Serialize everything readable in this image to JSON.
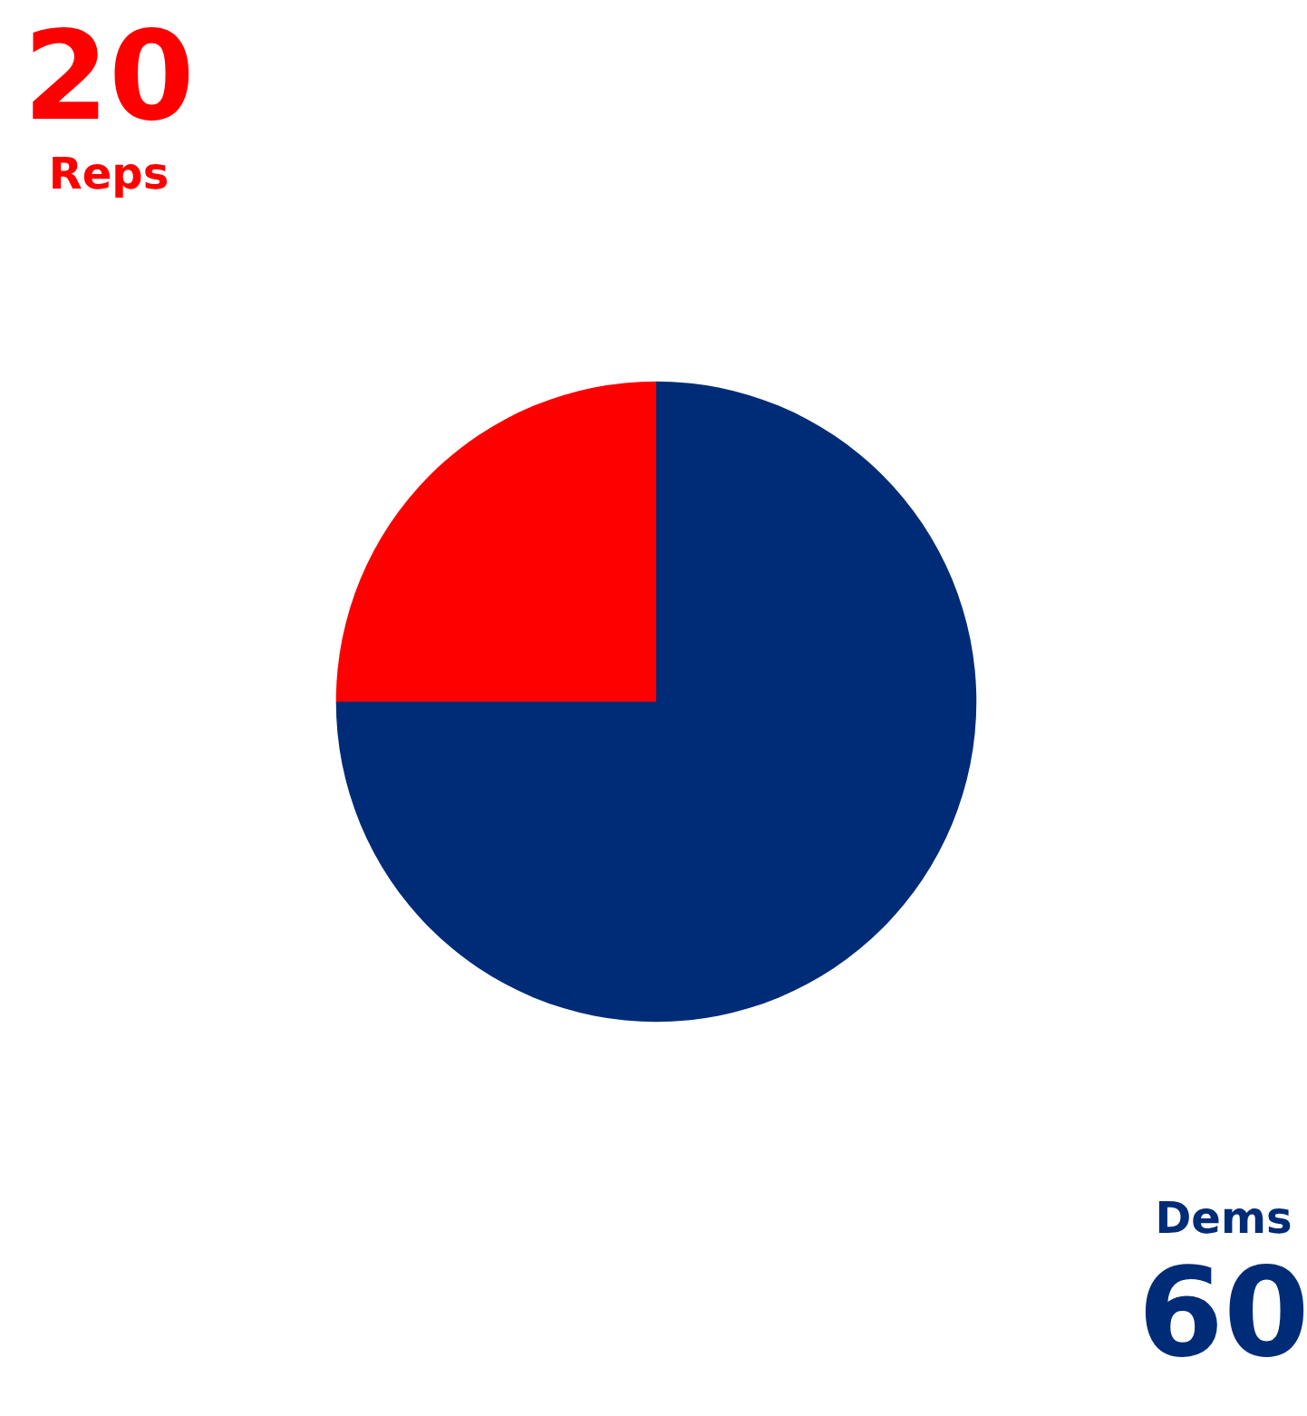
{
  "chart_data": {
    "type": "pie",
    "categories": [
      "Dems",
      "Reps"
    ],
    "values": [
      60,
      20
    ],
    "colors": [
      "#002c77",
      "#ff0000"
    ],
    "data_labels": true,
    "legend": false
  }
}
